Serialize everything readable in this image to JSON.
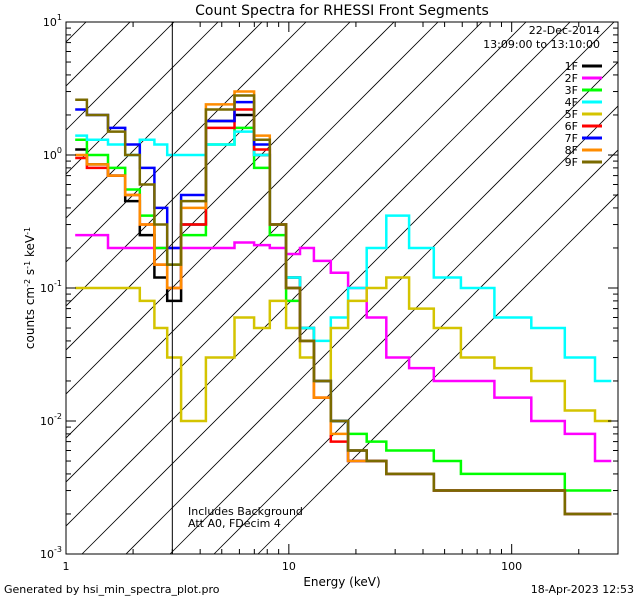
{
  "chart_data": {
    "type": "line",
    "title": "Count Spectra for RHESSI Front Segments",
    "xlabel": "Energy (keV)",
    "ylabel_parts": [
      "counts cm",
      "-2",
      " s",
      "-1",
      " keV",
      "-1"
    ],
    "xscale": "log",
    "yscale": "log",
    "xlim": [
      1,
      300
    ],
    "ylim": [
      0.001,
      10
    ],
    "x_tick_labels": [
      "1",
      "10",
      "100"
    ],
    "y_tick_labels": [
      {
        "base": "10",
        "exp": "1"
      },
      {
        "base": "10",
        "exp": "0"
      },
      {
        "base": "10",
        "exp": "-1"
      },
      {
        "base": "10",
        "exp": "-2"
      },
      {
        "base": "10",
        "exp": "-3"
      }
    ],
    "shaded_region": {
      "x": [
        1,
        3
      ],
      "pattern": "diagonal-hatch"
    },
    "date": "22-Dec-2014",
    "time_range": "13:09:00 to 13:10:00",
    "annotations": [
      "Includes Background",
      "Att A0, FDecim 4"
    ],
    "legend_position": "top-right",
    "series": [
      {
        "name": "1F",
        "color": "#000000",
        "values": [
          1.1,
          0.85,
          0.7,
          0.45,
          0.25,
          0.12,
          0.08,
          0.3,
          1.8,
          2.0,
          1.0,
          0.3,
          0.12,
          0.05,
          0.02,
          0.01,
          0.006,
          0.005,
          0.004,
          0.004,
          0.003,
          0.003,
          0.003,
          0.003,
          0.002,
          0.002
        ]
      },
      {
        "name": "2F",
        "color": "#ff00ff",
        "values": [
          0.25,
          0.25,
          0.2,
          0.2,
          0.2,
          0.2,
          0.2,
          0.2,
          0.2,
          0.22,
          0.21,
          0.2,
          0.18,
          0.2,
          0.16,
          0.13,
          0.1,
          0.06,
          0.03,
          0.025,
          0.02,
          0.02,
          0.015,
          0.01,
          0.008,
          0.005
        ]
      },
      {
        "name": "3F",
        "color": "#00ff00",
        "values": [
          1.3,
          1.0,
          0.8,
          0.55,
          0.35,
          0.2,
          0.15,
          0.25,
          1.2,
          1.6,
          0.8,
          0.25,
          0.08,
          0.04,
          0.02,
          0.01,
          0.008,
          0.007,
          0.006,
          0.006,
          0.005,
          0.004,
          0.004,
          0.004,
          0.003,
          0.003
        ]
      },
      {
        "name": "4F",
        "color": "#00ffff",
        "values": [
          1.4,
          1.3,
          1.2,
          1.0,
          1.3,
          1.2,
          1.0,
          1.0,
          1.2,
          1.5,
          1.0,
          0.3,
          0.12,
          0.05,
          0.04,
          0.06,
          0.1,
          0.2,
          0.35,
          0.2,
          0.12,
          0.1,
          0.06,
          0.05,
          0.03,
          0.02
        ]
      },
      {
        "name": "5F",
        "color": "#d4c400",
        "values": [
          0.1,
          0.1,
          0.1,
          0.1,
          0.08,
          0.05,
          0.03,
          0.01,
          0.03,
          0.06,
          0.05,
          0.08,
          0.05,
          0.03,
          0.02,
          0.05,
          0.08,
          0.1,
          0.12,
          0.07,
          0.05,
          0.03,
          0.025,
          0.02,
          0.012,
          0.01
        ]
      },
      {
        "name": "6F",
        "color": "#ff0000",
        "values": [
          0.95,
          0.8,
          0.7,
          0.5,
          0.3,
          0.15,
          0.1,
          0.3,
          1.6,
          2.2,
          1.1,
          0.3,
          0.1,
          0.04,
          0.015,
          0.007,
          0.005,
          0.005,
          0.004,
          0.004,
          0.003,
          0.003,
          0.003,
          0.003,
          0.002,
          0.002
        ]
      },
      {
        "name": "7F",
        "color": "#0000ff",
        "values": [
          2.2,
          2.0,
          1.6,
          1.2,
          0.8,
          0.4,
          0.2,
          0.5,
          1.8,
          2.5,
          1.2,
          0.3,
          0.1,
          0.04,
          0.02,
          0.01,
          0.005,
          0.005,
          0.004,
          0.004,
          0.003,
          0.003,
          0.003,
          0.003,
          0.002,
          0.002
        ]
      },
      {
        "name": "8F",
        "color": "#ff8c00",
        "values": [
          1.0,
          0.85,
          0.7,
          0.5,
          0.3,
          0.15,
          0.1,
          0.4,
          2.4,
          3.0,
          1.4,
          0.3,
          0.1,
          0.04,
          0.015,
          0.008,
          0.005,
          0.005,
          0.004,
          0.004,
          0.003,
          0.003,
          0.003,
          0.003,
          0.002,
          0.002
        ]
      },
      {
        "name": "9F",
        "color": "#7a6a00",
        "values": [
          2.6,
          2.0,
          1.5,
          1.0,
          0.6,
          0.3,
          0.15,
          0.45,
          2.2,
          2.8,
          1.3,
          0.3,
          0.1,
          0.04,
          0.02,
          0.01,
          0.006,
          0.005,
          0.004,
          0.004,
          0.003,
          0.003,
          0.003,
          0.003,
          0.002,
          0.002
        ]
      }
    ],
    "x": [
      1.1,
      1.4,
      1.7,
      2.0,
      2.3,
      2.7,
      3.0,
      3.6,
      5.0,
      6.5,
      7.5,
      9.0,
      10.5,
      12,
      14,
      17,
      20,
      25,
      30,
      40,
      50,
      70,
      100,
      150,
      200,
      280
    ]
  },
  "footer": {
    "left": "Generated by hsi_min_spectra_plot.pro",
    "right": "18-Apr-2023 12:53"
  }
}
